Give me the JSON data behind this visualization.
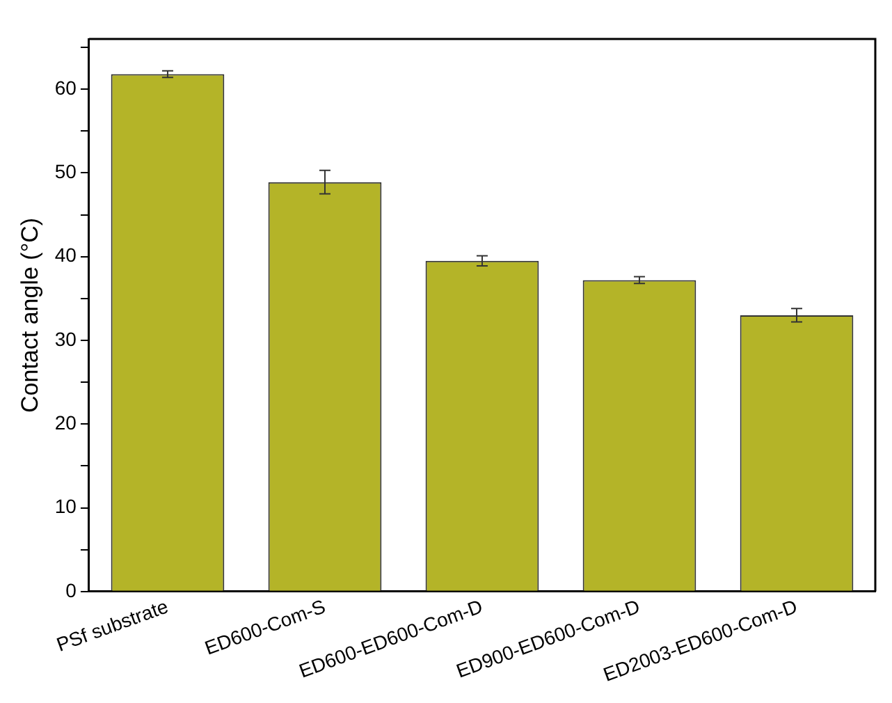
{
  "chart_data": {
    "type": "bar",
    "ylabel": "Contact angle (°C)",
    "categories": [
      "PSf substrate",
      "ED600-Com-S",
      "ED600-ED600-Com-D",
      "ED900-ED600-Com-D",
      "ED2003-ED600-Com-D"
    ],
    "values": [
      61.8,
      48.9,
      39.5,
      37.2,
      33.0
    ],
    "errors": [
      0.4,
      1.4,
      0.6,
      0.4,
      0.8
    ],
    "color": "#b4b428",
    "ylim": [
      0,
      66
    ],
    "yticks": [
      0,
      {
        "value": 5,
        "label": null
      },
      10,
      {
        "value": 15,
        "label": null
      },
      20,
      {
        "value": 25,
        "label": null
      },
      30,
      {
        "value": 35,
        "label": null
      },
      40,
      {
        "value": 45,
        "label": null
      },
      50,
      {
        "value": 55,
        "label": null
      },
      60,
      {
        "value": 65,
        "label": null
      }
    ],
    "grid": false,
    "legend": false
  }
}
